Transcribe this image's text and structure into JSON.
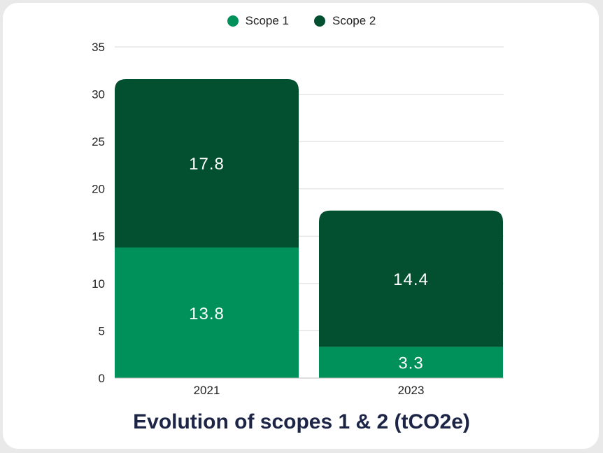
{
  "chart_data": {
    "type": "bar",
    "stacked": true,
    "title": "Evolution of scopes 1 & 2 (tCO2e)",
    "categories": [
      "2021",
      "2023"
    ],
    "series": [
      {
        "name": "Scope 1",
        "color": "#00915a",
        "values": [
          13.8,
          3.3
        ]
      },
      {
        "name": "Scope 2",
        "color": "#02502f",
        "values": [
          17.8,
          14.4
        ]
      }
    ],
    "ylim": [
      0,
      35
    ],
    "yticks": [
      0,
      5,
      10,
      15,
      20,
      25,
      30,
      35
    ],
    "grid": true,
    "legend_position": "top-center",
    "data_labels": true
  }
}
